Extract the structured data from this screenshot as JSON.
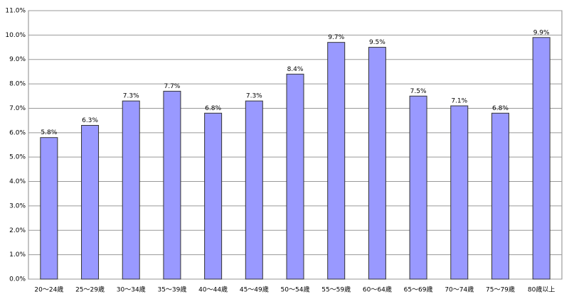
{
  "chart_data": {
    "type": "bar",
    "categories": [
      "20～24歳",
      "25～29歳",
      "30～34歳",
      "35～39歳",
      "40～44歳",
      "45～49歳",
      "50～54歳",
      "55～59歳",
      "60～64歳",
      "65～69歳",
      "70～74歳",
      "75～79歳",
      "80歳以上"
    ],
    "values": [
      5.8,
      6.3,
      7.3,
      7.7,
      6.8,
      7.3,
      8.4,
      9.7,
      9.5,
      7.5,
      7.1,
      6.8,
      9.9
    ],
    "value_labels": [
      "5.8%",
      "6.3%",
      "7.3%",
      "7.7%",
      "6.8%",
      "7.3%",
      "8.4%",
      "9.7%",
      "9.5%",
      "7.5%",
      "7.1%",
      "6.8%",
      "9.9%"
    ],
    "color": "#9999ff",
    "ylim": [
      0,
      11
    ],
    "yticks": [
      {
        "value": 0,
        "label": "0.0%"
      },
      {
        "value": 1,
        "label": "1.0%"
      },
      {
        "value": 2,
        "label": "2.0%"
      },
      {
        "value": 3,
        "label": "3.0%"
      },
      {
        "value": 4,
        "label": "4.0%"
      },
      {
        "value": 5,
        "label": "5.0%"
      },
      {
        "value": 6,
        "label": "6.0%"
      },
      {
        "value": 7,
        "label": "7.0%"
      },
      {
        "value": 8,
        "label": "8.0%"
      },
      {
        "value": 9,
        "label": "9.0%"
      },
      {
        "value": 10,
        "label": "10.0%"
      },
      {
        "value": 11,
        "label": "11.0%"
      }
    ],
    "grid": true
  }
}
